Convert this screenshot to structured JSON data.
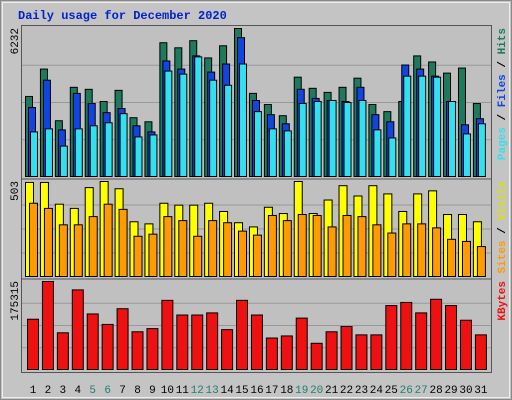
{
  "chart_data": {
    "type": "bar",
    "title": "Daily usage for December 2020",
    "label_separator": " / ",
    "categories": [
      "1",
      "2",
      "3",
      "4",
      "5",
      "6",
      "7",
      "8",
      "9",
      "10",
      "11",
      "12",
      "13",
      "14",
      "15",
      "16",
      "17",
      "18",
      "19",
      "20",
      "21",
      "22",
      "23",
      "24",
      "25",
      "26",
      "27",
      "28",
      "29",
      "30",
      "31"
    ],
    "category_colors": [
      "#000000",
      "#000000",
      "#000000",
      "#000000",
      "#1f7f6f",
      "#1f7f6f",
      "#000000",
      "#000000",
      "#000000",
      "#000000",
      "#000000",
      "#1f7f6f",
      "#1f7f6f",
      "#000000",
      "#000000",
      "#000000",
      "#000000",
      "#000000",
      "#1f7f6f",
      "#1f7f6f",
      "#000000",
      "#000000",
      "#000000",
      "#000000",
      "#000000",
      "#1f7f6f",
      "#1f7f6f",
      "#000000",
      "#000000",
      "#000000",
      "#000000"
    ],
    "panels": [
      {
        "ylim": [
          0,
          6232
        ],
        "yticks": [
          6232
        ],
        "series": [
          {
            "name": "Pages",
            "color": "#33e0f0",
            "values": [
              1907,
              2035,
              1314,
              2035,
              2162,
              2289,
              2670,
              1696,
              1780,
              4451,
              4324,
              5044,
              4069,
              3857,
              4747,
              2755,
              2035,
              1950,
              3094,
              3179,
              3221,
              3137,
              3221,
              1992,
              1653,
              4239,
              4239,
              4196,
              3179,
              1823,
              2247
            ]
          },
          {
            "name": "Files",
            "color": "#1244e0",
            "values": [
              2925,
              4069,
              1992,
              3518,
              3094,
              2713,
              2882,
              2162,
              1907,
              4874,
              4535,
              5086,
              4408,
              4747,
              5849,
              3221,
              2628,
              2247,
              3688,
              3306,
              3221,
              3179,
              3772,
              2628,
              2331,
              4705,
              4535,
              4239,
              3179,
              2204,
              2458
            ]
          },
          {
            "name": "Hits",
            "color": "#1d7a5c",
            "values": [
              3390,
              4535,
              2374,
              3772,
              3688,
              3179,
              3645,
              2501,
              2331,
              5637,
              5425,
              5722,
              5001,
              5510,
              6232,
              3518,
              3052,
              2585,
              4196,
              3730,
              3560,
              3772,
              4154,
              3052,
              2755,
              3179,
              5086,
              4832,
              4366,
              4578,
              3094
            ]
          }
        ]
      },
      {
        "ylim": [
          0,
          503
        ],
        "yticks": [
          503
        ],
        "series": [
          {
            "name": "Sites",
            "color": "#ff9a00",
            "values": [
              389,
              362,
              276,
              276,
              319,
              384,
              357,
              216,
              227,
              319,
              298,
              216,
              298,
              287,
              243,
              222,
              325,
              298,
              330,
              325,
              265,
              325,
              319,
              276,
              233,
              281,
              281,
              260,
              200,
              189,
              162
            ]
          },
          {
            "name": "Visits",
            "color": "#ffff00",
            "values": [
              498,
              498,
              384,
              362,
              471,
              503,
              465,
              292,
              281,
              389,
              379,
              379,
              389,
              346,
              287,
              265,
              368,
              335,
              503,
              335,
              406,
              481,
              427,
              481,
              438,
              346,
              438,
              454,
              330,
              330,
              292
            ]
          }
        ]
      },
      {
        "ylim": [
          0,
          175315
        ],
        "yticks": [
          175315
        ],
        "series": [
          {
            "name": "KBytes",
            "color": "#ee1111",
            "values": [
              101000,
              175315,
              74300,
              158800,
              111400,
              90800,
              121700,
              76300,
              82500,
              138200,
              109300,
              109300,
              113500,
              80500,
              138200,
              109300,
              64000,
              68100,
              103200,
              53600,
              76300,
              86700,
              70200,
              70200,
              127900,
              134100,
              113500,
              140300,
              127900,
              99000,
              70200
            ]
          }
        ]
      }
    ]
  }
}
